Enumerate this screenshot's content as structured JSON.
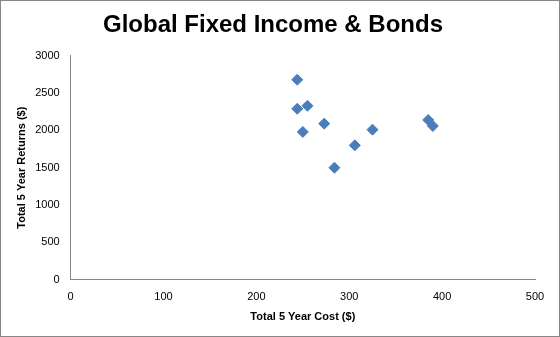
{
  "chart_data": {
    "type": "scatter",
    "title": "Global Fixed Income & Bonds",
    "x_label": "Total 5 Year Cost ($)",
    "y_label": "Total 5 Year Returns ($)",
    "x": [
      244,
      244,
      255,
      250,
      273,
      284,
      306,
      325,
      385,
      390
    ],
    "values": [
      2680,
      2290,
      2330,
      1980,
      2090,
      1500,
      1800,
      2010,
      2140,
      2060
    ],
    "color": "#4a7ebb",
    "marker": "diamond",
    "xlim": [
      0,
      500
    ],
    "xticks": [
      0,
      100,
      200,
      300,
      400,
      500
    ],
    "ylim": [
      0,
      3000
    ],
    "yticks": [
      0,
      500,
      1000,
      1500,
      2000,
      2500,
      3000
    ],
    "grid": false
  }
}
